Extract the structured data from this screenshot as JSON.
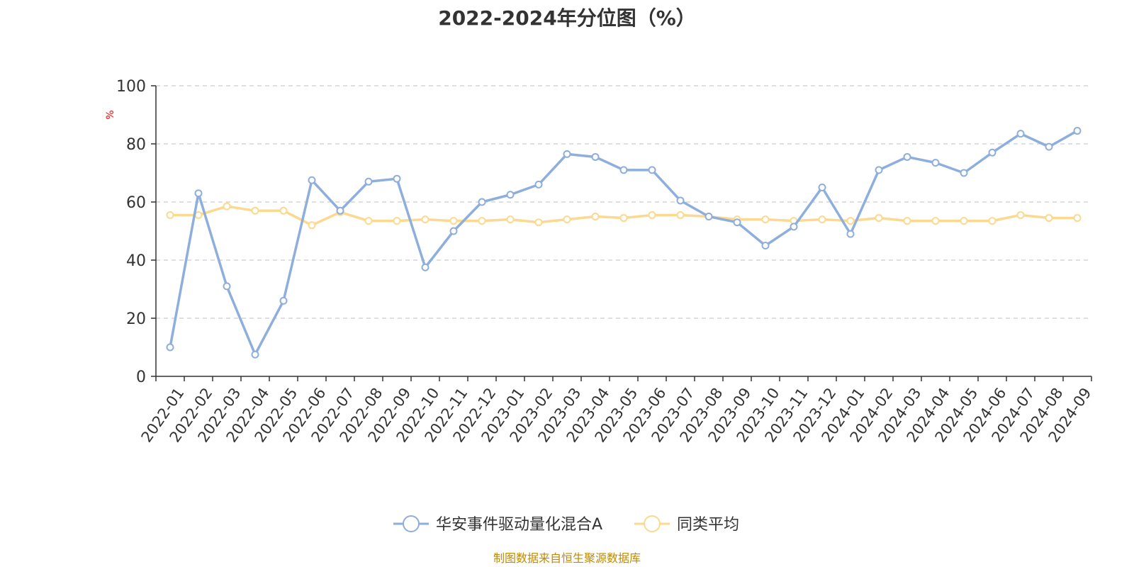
{
  "chart_data": {
    "type": "line",
    "title": "2022-2024年分位图（%）",
    "ylabel": "%",
    "ylim": [
      0,
      100
    ],
    "yticks": [
      0,
      20,
      40,
      60,
      80,
      100
    ],
    "grid": true,
    "legend_position": "bottom",
    "categories": [
      "2022-01",
      "2022-02",
      "2022-03",
      "2022-04",
      "2022-05",
      "2022-06",
      "2022-07",
      "2022-08",
      "2022-09",
      "2022-10",
      "2022-11",
      "2022-12",
      "2023-01",
      "2023-02",
      "2023-03",
      "2023-04",
      "2023-05",
      "2023-06",
      "2023-07",
      "2023-08",
      "2023-09",
      "2023-10",
      "2023-11",
      "2023-12",
      "2024-01",
      "2024-02",
      "2024-03",
      "2024-04",
      "2024-05",
      "2024-06",
      "2024-07",
      "2024-08",
      "2024-09"
    ],
    "series": [
      {
        "name": "华安事件驱动量化混合A",
        "color": "#8eaedc",
        "values": [
          10,
          63,
          31,
          7.5,
          26,
          67.5,
          57,
          67,
          68,
          37.5,
          50,
          60,
          62.5,
          66,
          76.5,
          75.5,
          71,
          71,
          60.5,
          55,
          53,
          45,
          51.5,
          65,
          49,
          71,
          75.5,
          73.5,
          70,
          77,
          83.5,
          79,
          84.5
        ]
      },
      {
        "name": "同类平均",
        "color": "#fbd98f",
        "values": [
          55.5,
          55.5,
          58.5,
          57,
          57,
          52,
          56.5,
          53.5,
          53.5,
          54,
          53.5,
          53.5,
          54,
          53,
          54,
          55,
          54.5,
          55.5,
          55.5,
          55,
          54,
          54,
          53.5,
          54,
          53.5,
          54.5,
          53.5,
          53.5,
          53.5,
          53.5,
          55.5,
          54.5,
          54.5
        ]
      }
    ]
  },
  "source_text": "制图数据来自恒生聚源数据库",
  "colors": {
    "axis": "#333333",
    "grid": "#cccccc",
    "ylabel": "#ff0000",
    "source": "#c08a00"
  }
}
